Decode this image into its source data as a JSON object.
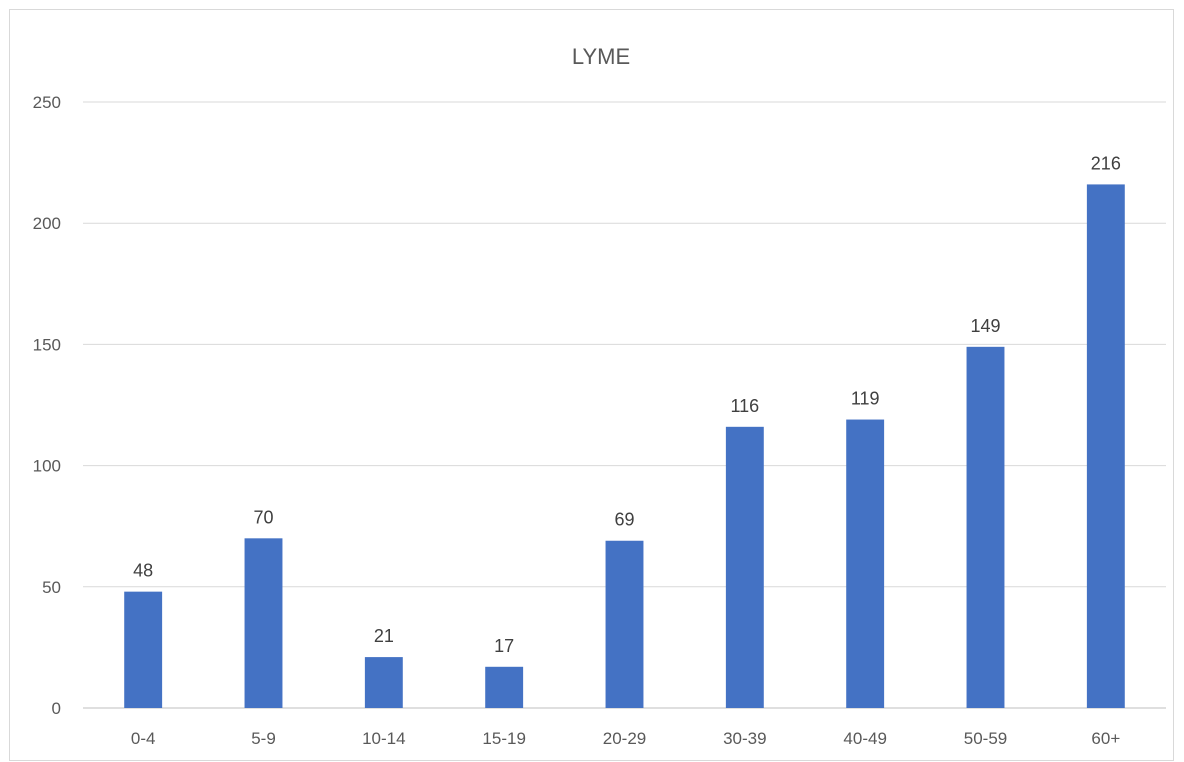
{
  "chart_data": {
    "type": "bar",
    "title": "LYME",
    "categories": [
      "0-4",
      "5-9",
      "10-14",
      "15-19",
      "20-29",
      "30-39",
      "40-49",
      "50-59",
      "60+"
    ],
    "values": [
      48,
      70,
      21,
      17,
      69,
      116,
      119,
      149,
      216
    ],
    "data_labels": [
      "48",
      "70",
      "21",
      "17",
      "69",
      "116",
      "119",
      "149",
      "216"
    ],
    "y_ticks": [
      "0",
      "50",
      "100",
      "150",
      "200",
      "250"
    ],
    "ylim": [
      0,
      250
    ],
    "grid": true,
    "legend": "none",
    "bar_color": "#4472c4"
  }
}
